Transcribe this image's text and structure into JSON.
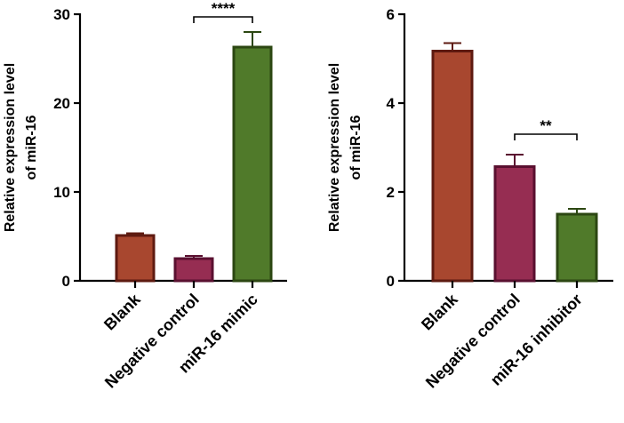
{
  "chart_data": [
    {
      "type": "bar",
      "ylabel": [
        "Relative expression level",
        "of miR-16"
      ],
      "ylim": [
        0,
        30
      ],
      "yticks": [
        0,
        10,
        20,
        30
      ],
      "categories": [
        "Blank",
        "Negative control",
        "miR-16 mimic"
      ],
      "values": [
        5.1,
        2.5,
        26.3
      ],
      "errors": [
        0.25,
        0.3,
        1.7
      ],
      "fill_colors": [
        "#a8472f",
        "#962d52",
        "#507a2a"
      ],
      "edge_colors": [
        "#5e1a10",
        "#5a1030",
        "#2c4712"
      ],
      "significance": [
        {
          "from": 1,
          "to": 2,
          "label": "****",
          "y": 29.7
        }
      ]
    },
    {
      "type": "bar",
      "ylabel": [
        "Relative expression level",
        "of miR-16"
      ],
      "ylim": [
        0,
        6
      ],
      "yticks": [
        0,
        2,
        4,
        6
      ],
      "categories": [
        "Blank",
        "Negative control",
        "miR-16 inhibitor"
      ],
      "values": [
        5.17,
        2.57,
        1.5
      ],
      "errors": [
        0.18,
        0.27,
        0.12
      ],
      "fill_colors": [
        "#a8472f",
        "#962d52",
        "#507a2a"
      ],
      "edge_colors": [
        "#5e1a10",
        "#5a1030",
        "#2c4712"
      ],
      "significance": [
        {
          "from": 1,
          "to": 2,
          "label": "**",
          "y": 3.3
        }
      ]
    }
  ]
}
